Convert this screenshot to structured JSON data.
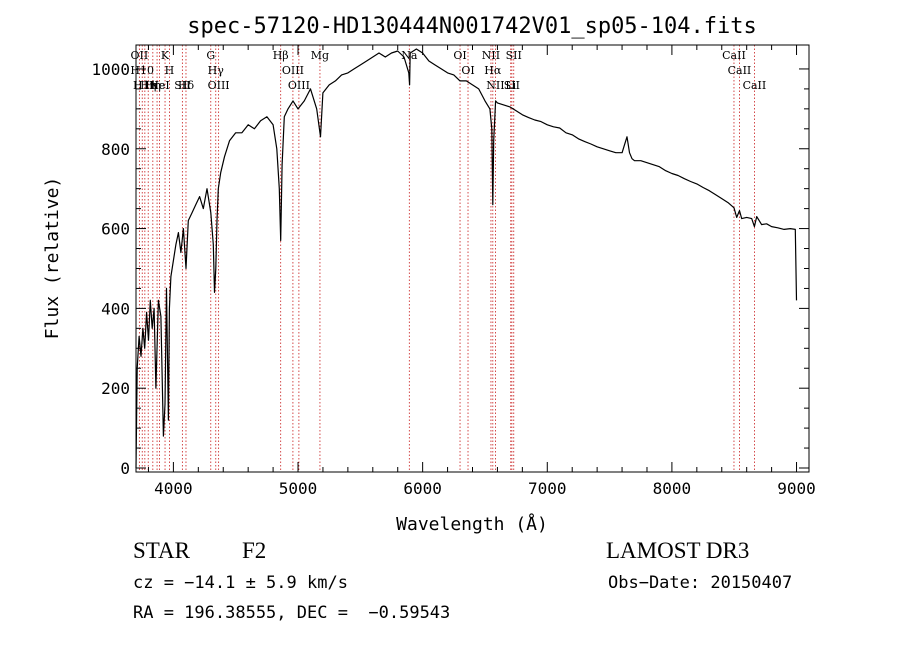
{
  "chart_data": {
    "type": "line",
    "title": "spec-57120-HD130444N001742V01_sp05-104.fits",
    "xlabel": "Wavelength (Å)",
    "ylabel": "Flux (relative)",
    "xlim": [
      3700,
      9100
    ],
    "ylim": [
      -10,
      1060
    ],
    "xticks": [
      4000,
      5000,
      6000,
      7000,
      8000,
      9000
    ],
    "yticks": [
      0,
      200,
      400,
      600,
      800,
      1000
    ],
    "grid": false,
    "series": [
      {
        "x": [
          3700,
          3710,
          3725,
          3740,
          3755,
          3770,
          3785,
          3800,
          3815,
          3830,
          3845,
          3860,
          3880,
          3900,
          3920,
          3933,
          3945,
          3960,
          3968,
          3980,
          4000,
          4020,
          4040,
          4060,
          4080,
          4101,
          4120,
          4150,
          4180,
          4210,
          4240,
          4270,
          4300,
          4320,
          4330,
          4340,
          4350,
          4360,
          4380,
          4410,
          4450,
          4500,
          4550,
          4600,
          4650,
          4700,
          4750,
          4800,
          4830,
          4850,
          4861,
          4872,
          4890,
          4920,
          4960,
          5000,
          5050,
          5100,
          5150,
          5180,
          5200,
          5250,
          5300,
          5350,
          5400,
          5450,
          5500,
          5550,
          5600,
          5650,
          5700,
          5750,
          5800,
          5850,
          5889,
          5895,
          5900,
          5950,
          6000,
          6050,
          6100,
          6150,
          6200,
          6250,
          6300,
          6350,
          6400,
          6450,
          6500,
          6540,
          6555,
          6563,
          6570,
          6585,
          6600,
          6650,
          6700,
          6750,
          6800,
          6850,
          6900,
          6950,
          7000,
          7050,
          7100,
          7150,
          7200,
          7250,
          7300,
          7350,
          7400,
          7450,
          7500,
          7550,
          7600,
          7620,
          7640,
          7660,
          7680,
          7700,
          7750,
          7800,
          7850,
          7900,
          7950,
          8000,
          8050,
          8100,
          8150,
          8200,
          8250,
          8300,
          8350,
          8400,
          8450,
          8498,
          8520,
          8542,
          8560,
          8600,
          8640,
          8662,
          8680,
          8720,
          8760,
          8800,
          8850,
          8900,
          8950,
          8990,
          9000
        ],
        "y": [
          0,
          250,
          330,
          280,
          350,
          300,
          390,
          320,
          420,
          350,
          400,
          200,
          420,
          380,
          80,
          160,
          450,
          120,
          400,
          480,
          520,
          560,
          590,
          540,
          600,
          500,
          620,
          640,
          660,
          680,
          650,
          700,
          640,
          560,
          440,
          500,
          620,
          700,
          740,
          780,
          820,
          840,
          840,
          860,
          850,
          870,
          880,
          860,
          800,
          700,
          570,
          760,
          880,
          900,
          920,
          900,
          920,
          950,
          900,
          830,
          940,
          960,
          970,
          985,
          990,
          1000,
          1010,
          1020,
          1030,
          1040,
          1030,
          1040,
          1045,
          1030,
          990,
          960,
          1040,
          1050,
          1040,
          1020,
          1010,
          1000,
          990,
          985,
          970,
          970,
          960,
          950,
          920,
          900,
          850,
          660,
          820,
          920,
          915,
          910,
          905,
          895,
          885,
          878,
          872,
          868,
          860,
          855,
          852,
          840,
          835,
          825,
          818,
          812,
          805,
          800,
          795,
          790,
          790,
          810,
          830,
          790,
          775,
          770,
          770,
          765,
          760,
          755,
          745,
          738,
          733,
          725,
          718,
          712,
          703,
          695,
          685,
          675,
          665,
          652,
          628,
          645,
          625,
          628,
          625,
          605,
          630,
          610,
          612,
          605,
          602,
          598,
          600,
          598,
          420
        ]
      }
    ],
    "lines": [
      {
        "wave": 3727,
        "label": "OII"
      },
      {
        "wave": 3750,
        "label": "H10"
      },
      {
        "wave": 3771,
        "label": "H11"
      },
      {
        "wave": 3798,
        "label": "Hη"
      },
      {
        "wave": 3835,
        "label": "Hη"
      },
      {
        "wave": 3869,
        "label": "Ne"
      },
      {
        "wave": 3889,
        "label": "HeI"
      },
      {
        "wave": 3933,
        "label": "K"
      },
      {
        "wave": 3968,
        "label": "H"
      },
      {
        "wave": 4072,
        "label": "SII"
      },
      {
        "wave": 4101,
        "label": "Hδ"
      },
      {
        "wave": 4300,
        "label": "G"
      },
      {
        "wave": 4340,
        "label": "Hγ"
      },
      {
        "wave": 4363,
        "label": "OIII"
      },
      {
        "wave": 4861,
        "label": "Hβ"
      },
      {
        "wave": 4959,
        "label": "OIII"
      },
      {
        "wave": 5007,
        "label": "OIII"
      },
      {
        "wave": 5176,
        "label": "Mg"
      },
      {
        "wave": 5893,
        "label": "Na"
      },
      {
        "wave": 6300,
        "label": "OI"
      },
      {
        "wave": 6364,
        "label": "OI"
      },
      {
        "wave": 6548,
        "label": "NII"
      },
      {
        "wave": 6563,
        "label": "Hα"
      },
      {
        "wave": 6584,
        "label": "NII"
      },
      {
        "wave": 6707,
        "label": "Li"
      },
      {
        "wave": 6716,
        "label": "SII"
      },
      {
        "wave": 6731,
        "label": "SII"
      },
      {
        "wave": 8498,
        "label": "CaII"
      },
      {
        "wave": 8542,
        "label": "CaII"
      },
      {
        "wave": 8662,
        "label": "CaII"
      }
    ],
    "line_color": "#c81e1e"
  },
  "info": {
    "class_type": "STAR",
    "class_sub": "F2",
    "survey": "LAMOST DR3",
    "cz": "cz = −14.1 ± 5.9 km/s",
    "obs_date": "Obs−Date: 20150407",
    "radec": "RA = 196.38555, DEC =  −0.59543"
  }
}
